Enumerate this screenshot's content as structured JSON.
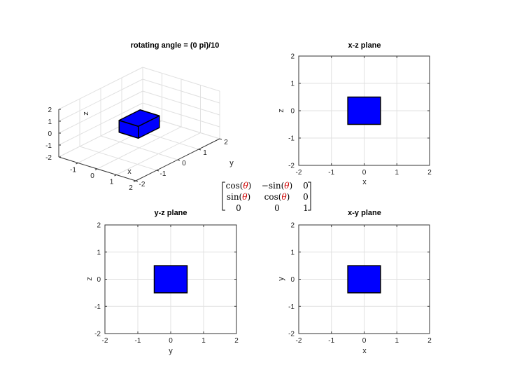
{
  "colors": {
    "face": "#0000ff",
    "edge": "#000000",
    "grid": "#e0e0e0",
    "theta": "#cc0000"
  },
  "matrix": {
    "rows": [
      [
        {
          "pre": "cos(",
          "sym": "θ",
          "post": ")"
        },
        {
          "pre": "−sin(",
          "sym": "θ",
          "post": ")"
        },
        {
          "pre": "0",
          "sym": "",
          "post": ""
        }
      ],
      [
        {
          "pre": "sin(",
          "sym": "θ",
          "post": ")"
        },
        {
          "pre": "cos(",
          "sym": "θ",
          "post": ")"
        },
        {
          "pre": "0",
          "sym": "",
          "post": ""
        }
      ],
      [
        {
          "pre": "0",
          "sym": "",
          "post": ""
        },
        {
          "pre": "0",
          "sym": "",
          "post": ""
        },
        {
          "pre": "1",
          "sym": "",
          "post": ""
        }
      ]
    ]
  },
  "chart_data": [
    {
      "id": "view3d",
      "type": "3d-surface",
      "title": "rotating angle = (0 pi)/10",
      "xlabel": "x",
      "ylabel": "y",
      "zlabel": "z",
      "xlim": [
        -2,
        2
      ],
      "ylim": [
        -2,
        2
      ],
      "zlim": [
        -2,
        2
      ],
      "xticks": [
        -1,
        0,
        1,
        2
      ],
      "yticks": [
        -2,
        -1,
        0,
        1,
        2
      ],
      "zticks": [
        -2,
        -1,
        0,
        1,
        2
      ],
      "grid": true,
      "box": {
        "x": [
          -0.5,
          0.5
        ],
        "y": [
          -0.5,
          0.5
        ],
        "z": [
          -0.5,
          0.5
        ]
      }
    },
    {
      "id": "xz",
      "type": "projection",
      "title": "x-z plane",
      "xlabel": "x",
      "ylabel": "z",
      "xlim": [
        -2,
        2
      ],
      "ylim": [
        -2,
        2
      ],
      "xticks": [
        -2,
        -1,
        0,
        1,
        2
      ],
      "yticks": [
        -2,
        -1,
        0,
        1,
        2
      ],
      "grid": true,
      "rect": {
        "x": [
          -0.5,
          0.5
        ],
        "y": [
          -0.5,
          0.5
        ]
      }
    },
    {
      "id": "yz",
      "type": "projection",
      "title": "y-z plane",
      "xlabel": "y",
      "ylabel": "z",
      "xlim": [
        -2,
        2
      ],
      "ylim": [
        -2,
        2
      ],
      "xticks": [
        -2,
        -1,
        0,
        1,
        2
      ],
      "yticks": [
        -2,
        -1,
        0,
        1,
        2
      ],
      "grid": true,
      "rect": {
        "x": [
          -0.5,
          0.5
        ],
        "y": [
          -0.5,
          0.5
        ]
      }
    },
    {
      "id": "xy",
      "type": "projection",
      "title": "x-y plane",
      "xlabel": "x",
      "ylabel": "y",
      "xlim": [
        -2,
        2
      ],
      "ylim": [
        -2,
        2
      ],
      "xticks": [
        -2,
        -1,
        0,
        1,
        2
      ],
      "yticks": [
        -2,
        -1,
        0,
        1,
        2
      ],
      "grid": true,
      "rect": {
        "x": [
          -0.5,
          0.5
        ],
        "y": [
          -0.5,
          0.5
        ]
      }
    }
  ]
}
